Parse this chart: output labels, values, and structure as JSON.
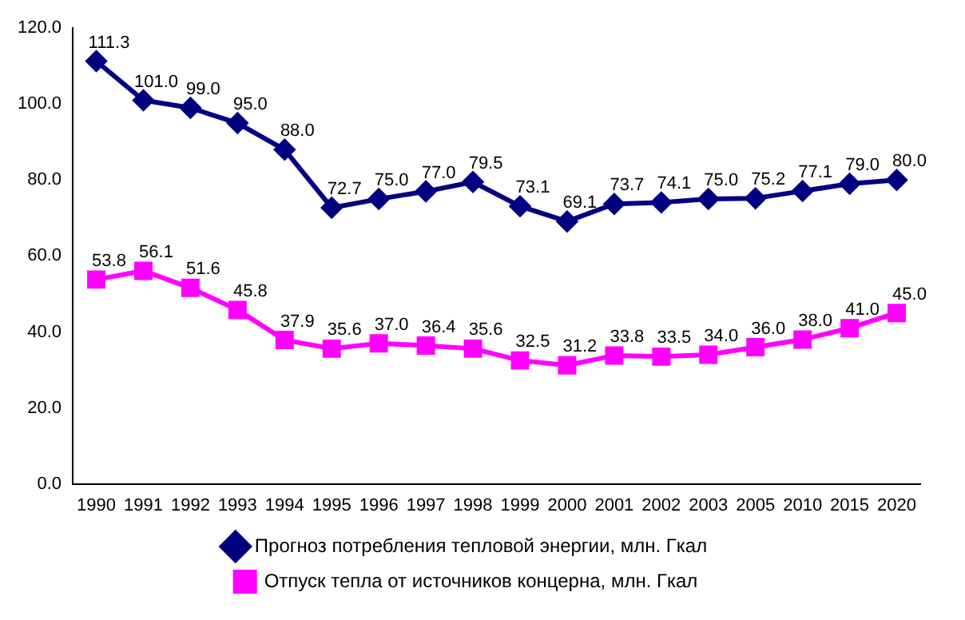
{
  "chart_data": {
    "type": "line",
    "categories": [
      "1990",
      "1991",
      "1992",
      "1993",
      "1994",
      "1995",
      "1996",
      "1997",
      "1998",
      "1999",
      "2000",
      "2001",
      "2002",
      "2003",
      "2005",
      "2010",
      "2015",
      "2020"
    ],
    "series": [
      {
        "name": "Прогноз потребления тепловой энергии, млн. Гкал",
        "color": "#000080",
        "marker": "diamond",
        "values": [
          111.3,
          101.0,
          99.0,
          95.0,
          88.0,
          72.7,
          75.0,
          77.0,
          79.5,
          73.1,
          69.1,
          73.7,
          74.1,
          75.0,
          75.2,
          77.1,
          79.0,
          80.0
        ],
        "value_labels": [
          "111.3",
          "101.0",
          "99.0",
          "95.0",
          "88.0",
          "72.7",
          "75.0",
          "77.0",
          "79.5",
          "73.1",
          "69.1",
          "73.7",
          "74.1",
          "75.0",
          "75.2",
          "77.1",
          "79.0",
          "80.0"
        ]
      },
      {
        "name": "Отпуск тепла от источников концерна, млн. Гкал",
        "color": "#ff00ff",
        "marker": "square",
        "values": [
          53.8,
          56.1,
          51.6,
          45.8,
          37.9,
          35.6,
          37.0,
          36.4,
          35.6,
          32.5,
          31.2,
          33.8,
          33.5,
          34.0,
          36.0,
          38.0,
          41.0,
          45.0
        ],
        "value_labels": [
          "53.8",
          "56.1",
          "51.6",
          "45.8",
          "37.9",
          "35.6",
          "37.0",
          "36.4",
          "35.6",
          "32.5",
          "31.2",
          "33.8",
          "33.5",
          "34.0",
          "36.0",
          "38.0",
          "41.0",
          "45.0"
        ]
      }
    ],
    "ylim": [
      0,
      120
    ],
    "yticks": [
      {
        "value": 0,
        "label": "0.0"
      },
      {
        "value": 20,
        "label": "20.0"
      },
      {
        "value": 40,
        "label": "40.0"
      },
      {
        "value": 60,
        "label": "60.0"
      },
      {
        "value": 80,
        "label": "80.0"
      },
      {
        "value": 100,
        "label": "100.0"
      },
      {
        "value": 120,
        "label": "120.0"
      }
    ],
    "grid": false,
    "legend": "bottom",
    "line_style": "solid"
  }
}
